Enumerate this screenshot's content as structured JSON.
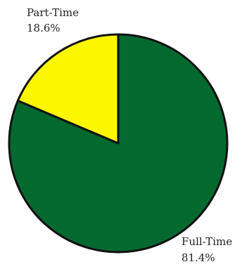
{
  "chart_data": {
    "type": "pie",
    "title": "",
    "series": [
      {
        "values": [
          81.4,
          18.6
        ],
        "labels": [
          "Full-Time",
          "Part-Time"
        ],
        "percent_labels": [
          "81.4%",
          "18.6%"
        ],
        "colors": [
          "#03692f",
          "#fcf700"
        ]
      }
    ],
    "start_angle": "12 o'clock",
    "direction": "clockwise",
    "outline_color": "#111111"
  }
}
